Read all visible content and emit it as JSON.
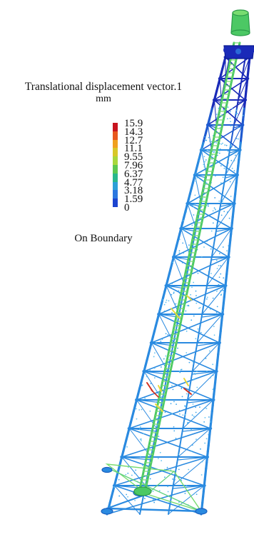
{
  "legend": {
    "title": "Translational displacement vector.1",
    "unit": "mm",
    "ticks": [
      "15.9",
      "14.3",
      "12.7",
      "11.1",
      "9.55",
      "7.96",
      "6.37",
      "4.77",
      "3.18",
      "1.59",
      "0"
    ],
    "colors": [
      "#c8141e",
      "#e8581e",
      "#f0a01e",
      "#d8c828",
      "#a8d83c",
      "#5cc850",
      "#28b88c",
      "#2ca0d8",
      "#2c78e0",
      "#1c44d0"
    ],
    "footer": "On Boundary"
  },
  "palette": {
    "tower_steel": "#2a8ae0",
    "tower_steel_light": "#3aa4ec",
    "tower_top": "#1a2ab8",
    "mast": "#4cc864",
    "mast_light": "#78dc70",
    "hotspot_yellow": "#e8d840",
    "hotspot_red": "#d03020"
  }
}
